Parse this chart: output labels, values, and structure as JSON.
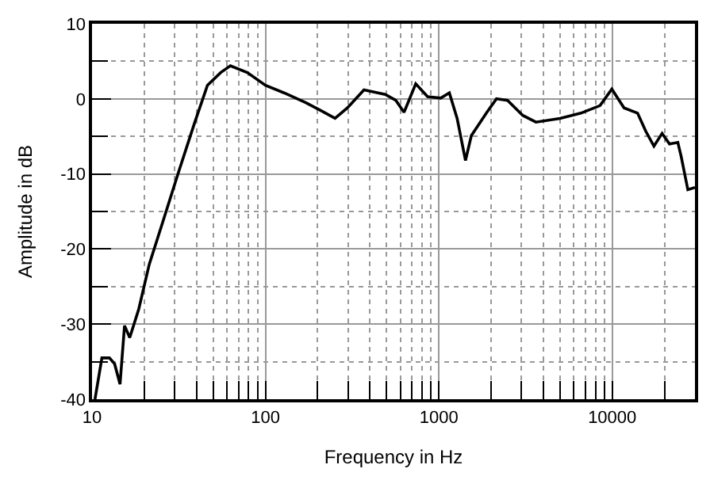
{
  "chart_data": {
    "type": "line",
    "xlabel": "Frequency in Hz",
    "ylabel": "Amplitude in dB",
    "log": "x",
    "xlim": [
      10,
      30000
    ],
    "xticks": [
      10,
      100,
      1000,
      10000
    ],
    "ylim": [
      -40,
      10
    ],
    "yticks": [
      -40,
      -30,
      -20,
      -10,
      0,
      10
    ],
    "grid": true,
    "marker": "none",
    "line_style": "solid",
    "series": [
      {
        "color": "#000000",
        "x": [
          10.4,
          11.4,
          12.6,
          13.5,
          14.5,
          15.4,
          16.5,
          18.6,
          21.4,
          25.5,
          31.5,
          38.9,
          46.3,
          55.2,
          62.8,
          78.6,
          100,
          128,
          171,
          210,
          252,
          297,
          370,
          491,
          565,
          630,
          736,
          861,
          1025,
          1150,
          1275,
          1425,
          1540,
          1880,
          2150,
          2490,
          3050,
          3630,
          5000,
          6600,
          8500,
          9950,
          11700,
          14000,
          15600,
          17400,
          19400,
          21400,
          23900,
          25000,
          27300,
          30000
        ],
        "values": [
          -40,
          -34.5,
          -34.5,
          -35.3,
          -38,
          -30.2,
          -31.8,
          -28,
          -22,
          -16.5,
          -9.8,
          -3.3,
          1.8,
          3.5,
          4.4,
          3.5,
          1.8,
          0.8,
          -0.5,
          -1.6,
          -2.6,
          -1.2,
          1.2,
          0.6,
          -0.2,
          -1.8,
          2.0,
          0.3,
          0.1,
          0.8,
          -2.6,
          -8.2,
          -4.9,
          -1.9,
          0.0,
          -0.2,
          -2.2,
          -3.1,
          -2.6,
          -1.9,
          -0.9,
          1.3,
          -1.2,
          -1.9,
          -4.3,
          -6.3,
          -4.6,
          -6.0,
          -5.8,
          -7.7,
          -12.1,
          -11.8
        ]
      }
    ]
  }
}
